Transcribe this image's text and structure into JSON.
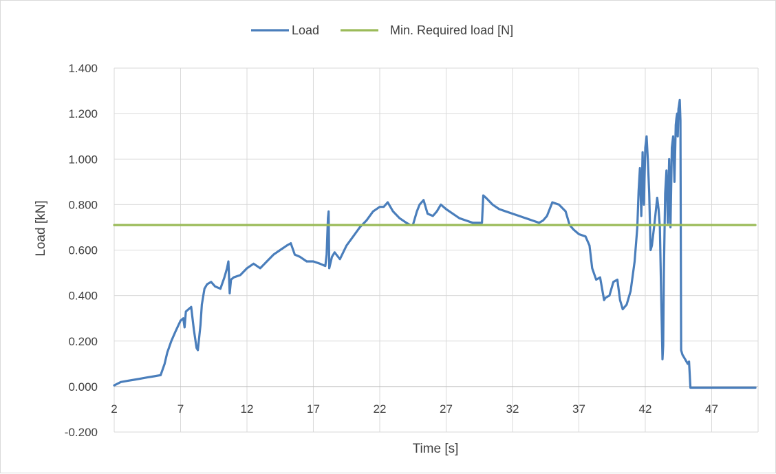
{
  "chart_data": {
    "type": "line",
    "title": "",
    "xlabel": "Time [s]",
    "ylabel": "Load [kN]",
    "xlim": [
      2,
      50.5
    ],
    "ylim": [
      -0.2,
      1.4
    ],
    "x_ticks": [
      2,
      7,
      12,
      17,
      22,
      27,
      32,
      37,
      42,
      47
    ],
    "x_tick_labels": [
      "2",
      "7",
      "12",
      "17",
      "22",
      "27",
      "32",
      "37",
      "42",
      "47"
    ],
    "y_ticks": [
      -0.2,
      0,
      0.2,
      0.4,
      0.6,
      0.8,
      1.0,
      1.2,
      1.4
    ],
    "y_tick_labels": [
      "-0.200",
      "0.000",
      "0.200",
      "0.400",
      "0.600",
      "0.800",
      "1.000",
      "1.200",
      "1.400"
    ],
    "grid": true,
    "legend_position": "top",
    "series": [
      {
        "name": "Load",
        "color": "#4a7ebb",
        "x": [
          2.0,
          2.5,
          3.0,
          3.5,
          4.0,
          4.5,
          5.0,
          5.5,
          5.8,
          6.0,
          6.3,
          6.6,
          7.0,
          7.2,
          7.3,
          7.4,
          7.6,
          7.8,
          8.0,
          8.2,
          8.3,
          8.5,
          8.6,
          8.8,
          9.0,
          9.3,
          9.6,
          10.0,
          10.3,
          10.5,
          10.6,
          10.7,
          10.8,
          11.0,
          11.5,
          12.0,
          12.5,
          13.0,
          13.5,
          14.0,
          14.5,
          15.0,
          15.3,
          15.6,
          16.0,
          16.5,
          17.0,
          17.5,
          17.9,
          18.0,
          18.1,
          18.15,
          18.2,
          18.4,
          18.6,
          19.0,
          19.5,
          20.0,
          20.5,
          21.0,
          21.5,
          22.0,
          22.3,
          22.6,
          23.0,
          23.5,
          24.0,
          24.3,
          24.5,
          24.8,
          25.0,
          25.3,
          25.6,
          26.0,
          26.3,
          26.6,
          27.0,
          27.5,
          28.0,
          28.5,
          29.0,
          29.7,
          29.8,
          30.0,
          30.5,
          31.0,
          31.5,
          32.0,
          32.5,
          33.0,
          33.5,
          34.0,
          34.3,
          34.6,
          35.0,
          35.5,
          36.0,
          36.3,
          36.6,
          37.0,
          37.5,
          37.8,
          38.0,
          38.3,
          38.6,
          38.9,
          39.0,
          39.3,
          39.6,
          39.9,
          40.1,
          40.3,
          40.6,
          40.9,
          41.2,
          41.4,
          41.5,
          41.6,
          41.7,
          41.8,
          41.9,
          42.0,
          42.1,
          42.2,
          42.3,
          42.4,
          42.5,
          42.7,
          42.9,
          43.0,
          43.1,
          43.2,
          43.3,
          43.35,
          43.4,
          43.5,
          43.6,
          43.7,
          43.8,
          43.9,
          44.0,
          44.1,
          44.2,
          44.3,
          44.35,
          44.4,
          44.45,
          44.5,
          44.55,
          44.6,
          44.65,
          44.7,
          44.8,
          45.0,
          45.2,
          45.3,
          45.4,
          46.0,
          47.0,
          48.0,
          49.0,
          50.0,
          50.3
        ],
        "values": [
          0.005,
          0.02,
          0.025,
          0.03,
          0.035,
          0.04,
          0.045,
          0.05,
          0.1,
          0.15,
          0.2,
          0.24,
          0.29,
          0.3,
          0.26,
          0.33,
          0.34,
          0.35,
          0.25,
          0.17,
          0.16,
          0.27,
          0.36,
          0.43,
          0.45,
          0.46,
          0.44,
          0.43,
          0.48,
          0.52,
          0.55,
          0.41,
          0.47,
          0.48,
          0.49,
          0.52,
          0.54,
          0.52,
          0.55,
          0.58,
          0.6,
          0.62,
          0.63,
          0.58,
          0.57,
          0.55,
          0.55,
          0.54,
          0.53,
          0.58,
          0.74,
          0.77,
          0.52,
          0.57,
          0.59,
          0.56,
          0.62,
          0.66,
          0.7,
          0.73,
          0.77,
          0.79,
          0.79,
          0.81,
          0.77,
          0.74,
          0.72,
          0.71,
          0.71,
          0.77,
          0.8,
          0.82,
          0.76,
          0.75,
          0.77,
          0.8,
          0.78,
          0.76,
          0.74,
          0.73,
          0.72,
          0.72,
          0.84,
          0.83,
          0.8,
          0.78,
          0.77,
          0.76,
          0.75,
          0.74,
          0.73,
          0.72,
          0.73,
          0.75,
          0.81,
          0.8,
          0.77,
          0.71,
          0.69,
          0.67,
          0.66,
          0.62,
          0.52,
          0.47,
          0.48,
          0.38,
          0.39,
          0.4,
          0.46,
          0.47,
          0.38,
          0.34,
          0.36,
          0.42,
          0.55,
          0.7,
          0.86,
          0.96,
          0.75,
          1.03,
          0.8,
          1.05,
          1.1,
          0.99,
          0.85,
          0.6,
          0.62,
          0.72,
          0.83,
          0.78,
          0.7,
          0.4,
          0.12,
          0.18,
          0.5,
          0.85,
          0.95,
          0.72,
          1.0,
          0.7,
          1.05,
          1.1,
          0.9,
          1.15,
          1.18,
          1.2,
          1.1,
          1.22,
          1.24,
          1.26,
          1.17,
          0.16,
          0.14,
          0.12,
          0.1,
          0.11,
          -0.005,
          -0.005,
          -0.005,
          -0.005,
          -0.005,
          -0.005,
          -0.005
        ]
      },
      {
        "name": "Min. Required load [N]",
        "color": "#9bbb59",
        "x": [
          2.0,
          50.3
        ],
        "values": [
          0.71,
          0.71
        ]
      }
    ]
  }
}
